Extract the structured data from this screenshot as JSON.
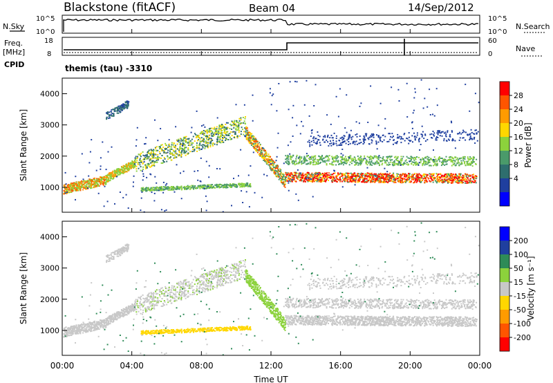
{
  "header": {
    "station": "Blackstone (fitACF)",
    "beam": "Beam 04",
    "date": "14/Sep/2012"
  },
  "noise_panel": {
    "left_label": "N.Sky",
    "right_label": "N.Search",
    "left_ticks": [
      "10^5",
      "10^0"
    ],
    "right_ticks": [
      "10^5",
      "10^0"
    ]
  },
  "freq_panel": {
    "left_label_1": "Freq.",
    "left_label_2": "[MHz]",
    "right_label": "Nave",
    "left_ticks": [
      "18",
      "8"
    ],
    "right_ticks": [
      "60",
      "0"
    ]
  },
  "cpid": {
    "label": "CPID",
    "value": "themis (tau) -3310"
  },
  "colors": {
    "power": [
      "#0000ff",
      "#1f3f9f",
      "#2e6e6e",
      "#4a9a6a",
      "#8cd23c",
      "#ffd700",
      "#ff9b00",
      "#ff5500",
      "#ff0000"
    ],
    "velocity": [
      "#ff0000",
      "#ff5500",
      "#ff9b00",
      "#ffd700",
      "#c8c8c8",
      "#8cd23c",
      "#2e8b57",
      "#1f3f9f",
      "#0000ff"
    ]
  },
  "chart_data": [
    {
      "type": "heatmap",
      "name": "power",
      "ylabel": "Slant Range [km]",
      "yticks": [
        "4000",
        "3000",
        "2000",
        "1000"
      ],
      "ylim": [
        200,
        4500
      ],
      "xlim_hours": [
        0,
        24
      ],
      "colorbar": {
        "label": "Power [dB]",
        "ticks": [
          "28",
          "24",
          "20",
          "16",
          "12",
          "8",
          "4"
        ],
        "range": [
          0,
          32
        ]
      }
    },
    {
      "type": "heatmap",
      "name": "velocity",
      "ylabel": "Slant Range [km]",
      "yticks": [
        "4000",
        "3000",
        "2000",
        "1000"
      ],
      "ylim": [
        200,
        4500
      ],
      "xlim_hours": [
        0,
        24
      ],
      "colorbar": {
        "label": "Velocity [m s⁻¹]",
        "ticks": [
          "200",
          "100",
          "50",
          "15",
          "-15",
          "-50",
          "-100",
          "-200"
        ],
        "range": [
          -250,
          250
        ]
      }
    }
  ],
  "xaxis": {
    "label": "Time UT",
    "ticks": [
      "00:00",
      "04:00",
      "08:00",
      "12:00",
      "16:00",
      "20:00",
      "00:00"
    ]
  }
}
